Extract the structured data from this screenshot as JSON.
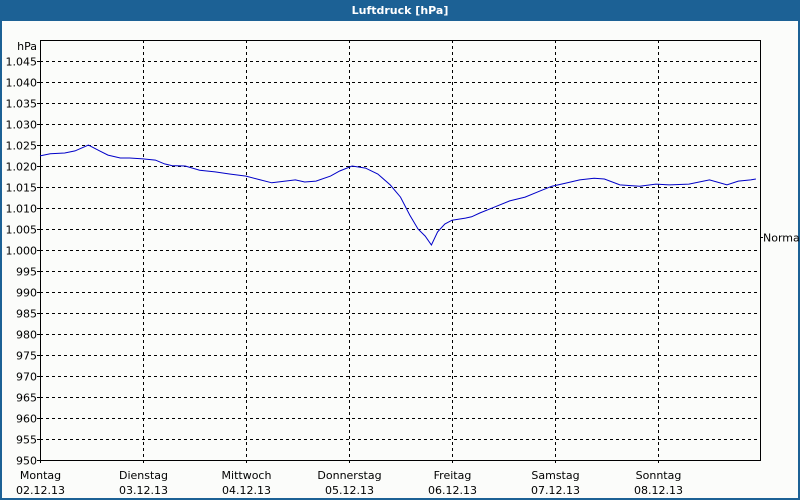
{
  "window": {
    "title": "Luftdruck [hPa]"
  },
  "colors": {
    "title_bar": "#1c6195",
    "background": "#fbfcfa",
    "line": "#0000c8",
    "grid": "#000000"
  },
  "chart_data": {
    "type": "line",
    "title": "Luftdruck [hPa]",
    "xlabel": "",
    "ylabel": "hPa",
    "ylim": [
      950,
      1045
    ],
    "grid": true,
    "y_ticks": [
      "950",
      "955",
      "960",
      "965",
      "970",
      "975",
      "980",
      "985",
      "990",
      "995",
      "1.000",
      "1.005",
      "1.010",
      "1.015",
      "1.020",
      "1.025",
      "1.030",
      "1.035",
      "1.040",
      "1.045"
    ],
    "x_ticks": [
      {
        "day": "Montag",
        "date": "02.12.13"
      },
      {
        "day": "Dienstag",
        "date": "03.12.13"
      },
      {
        "day": "Mittwoch",
        "date": "04.12.13"
      },
      {
        "day": "Donnerstag",
        "date": "05.12.13"
      },
      {
        "day": "Freitag",
        "date": "06.12.13"
      },
      {
        "day": "Samstag",
        "date": "07.12.13"
      },
      {
        "day": "Sonntag",
        "date": "08.12.13"
      }
    ],
    "annotations": [
      {
        "label": "Normal",
        "value": 1003
      }
    ],
    "series": [
      {
        "name": "Luftdruck",
        "x_days": [
          0,
          0.1,
          0.24,
          0.34,
          0.47,
          0.58,
          0.66,
          0.78,
          0.87,
          1.0,
          1.12,
          1.21,
          1.28,
          1.41,
          1.55,
          1.7,
          1.84,
          2.0,
          2.14,
          2.25,
          2.38,
          2.48,
          2.57,
          2.68,
          2.82,
          2.91,
          3.03,
          3.16,
          3.28,
          3.4,
          3.5,
          3.59,
          3.67,
          3.74,
          3.8,
          3.86,
          3.93,
          4.0,
          4.13,
          4.19,
          4.27,
          4.41,
          4.56,
          4.71,
          4.85,
          4.97,
          5.1,
          5.24,
          5.38,
          5.48,
          5.63,
          5.82,
          5.98,
          6.11,
          6.3,
          6.5,
          6.67,
          6.78,
          6.9,
          6.95
        ],
        "values": [
          1022.4,
          1022.9,
          1023.1,
          1023.6,
          1025.0,
          1023.6,
          1022.6,
          1021.9,
          1021.9,
          1021.7,
          1021.4,
          1020.5,
          1020.1,
          1020.0,
          1019.0,
          1018.6,
          1018.1,
          1017.6,
          1016.7,
          1016.0,
          1016.4,
          1016.7,
          1016.2,
          1016.4,
          1017.6,
          1018.8,
          1020.0,
          1019.5,
          1018.1,
          1015.5,
          1012.6,
          1008.3,
          1005.0,
          1003.3,
          1001.2,
          1004.3,
          1006.2,
          1007.1,
          1007.6,
          1007.9,
          1008.8,
          1010.2,
          1011.7,
          1012.6,
          1014.0,
          1015.2,
          1015.9,
          1016.7,
          1017.1,
          1016.9,
          1015.5,
          1015.2,
          1015.7,
          1015.5,
          1015.7,
          1016.7,
          1015.5,
          1016.4,
          1016.7,
          1016.9
        ]
      }
    ]
  }
}
